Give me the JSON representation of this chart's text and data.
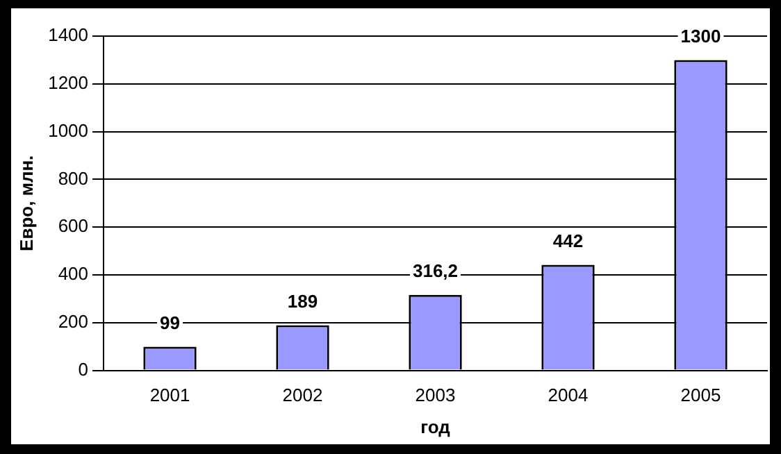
{
  "chart_data": {
    "type": "bar",
    "xlabel": "год",
    "ylabel": "Евро, млн.",
    "categories": [
      "2001",
      "2002",
      "2003",
      "2004",
      "2005"
    ],
    "values": [
      99,
      189,
      316.2,
      442,
      1300
    ],
    "color": "#9999ff",
    "value_labels": [
      "99",
      "189",
      "316,2",
      "442",
      "1300"
    ],
    "ylim": [
      0,
      1400
    ],
    "yticks": [
      0,
      200,
      400,
      600,
      800,
      1000,
      1200,
      1400
    ],
    "grid": "y",
    "legend": false
  }
}
